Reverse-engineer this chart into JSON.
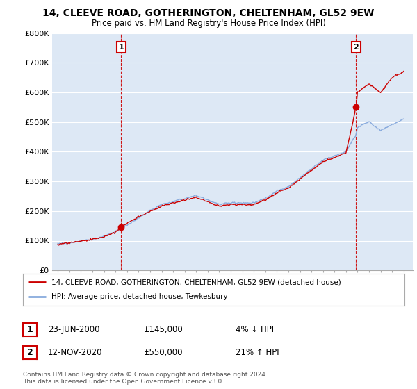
{
  "title_line1": "14, CLEEVE ROAD, GOTHERINGTON, CHELTENHAM, GL52 9EW",
  "title_line2": "Price paid vs. HM Land Registry's House Price Index (HPI)",
  "legend_line1": "14, CLEEVE ROAD, GOTHERINGTON, CHELTENHAM, GL52 9EW (detached house)",
  "legend_line2": "HPI: Average price, detached house, Tewkesbury",
  "annotation1_date": "23-JUN-2000",
  "annotation1_price": "£145,000",
  "annotation1_hpi": "4% ↓ HPI",
  "annotation2_date": "12-NOV-2020",
  "annotation2_price": "£550,000",
  "annotation2_hpi": "21% ↑ HPI",
  "footnote1": "Contains HM Land Registry data © Crown copyright and database right 2024.",
  "footnote2": "This data is licensed under the Open Government Licence v3.0.",
  "price_color": "#cc0000",
  "hpi_color": "#88aadd",
  "annotation_box_color": "#cc0000",
  "background_color": "#ffffff",
  "chart_bg_color": "#dde8f5",
  "grid_color": "#ffffff",
  "ylim": [
    0,
    800000
  ],
  "yticks": [
    0,
    100000,
    200000,
    300000,
    400000,
    500000,
    600000,
    700000,
    800000
  ],
  "ytick_labels": [
    "£0",
    "£100K",
    "£200K",
    "£300K",
    "£400K",
    "£500K",
    "£600K",
    "£700K",
    "£800K"
  ],
  "sale1_x": 2000.48,
  "sale1_y": 145000,
  "sale2_x": 2020.87,
  "sale2_y": 550000,
  "xmin": 1994.5,
  "xmax": 2025.8
}
